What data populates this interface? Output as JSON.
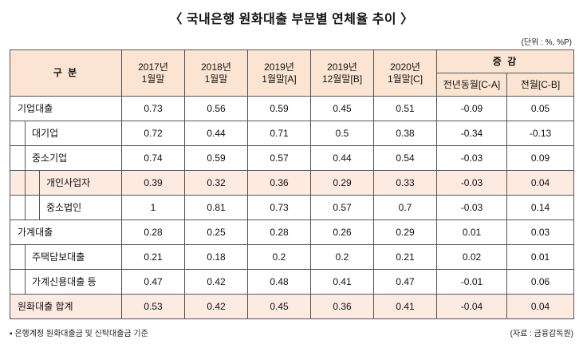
{
  "page": {
    "title": "〈 국내은행 원화대출 부문별 연체율 추이 〉",
    "unit_note": "(단위 : %, %P)",
    "footnote": "▪ 은행계정 원화대출금 및 신탁대출금 기준",
    "source": "(자료 : 금융감독원)"
  },
  "colors": {
    "header_bg": "#fbe5d2",
    "highlight_bg": "#fdeae1",
    "outer_border": "#222222",
    "inner_border": "#555555"
  },
  "chart_data": {
    "type": "table",
    "title": "국내은행 원화대출 부문별 연체율 추이",
    "unit": "%, %P",
    "header": {
      "category_label": "구  분",
      "period_columns": [
        "2017년\n1월말",
        "2018년\n1월말",
        "2019년\n1월말[A]",
        "2019년\n12월말[B]",
        "2020년\n1월말[C]"
      ],
      "change_group_label": "증 감",
      "change_columns": [
        "전년동월[C-A]",
        "전월[C-B]"
      ]
    },
    "rows": [
      {
        "label": "기업대출",
        "indent": 0,
        "highlight": false,
        "values": [
          "0.73",
          "0.56",
          "0.59",
          "0.45",
          "0.51",
          "-0.09",
          "0.05"
        ]
      },
      {
        "label": "대기업",
        "indent": 1,
        "highlight": false,
        "values": [
          "0.72",
          "0.44",
          "0.71",
          "0.5",
          "0.38",
          "-0.34",
          "-0.13"
        ]
      },
      {
        "label": "중소기업",
        "indent": 1,
        "highlight": false,
        "values": [
          "0.74",
          "0.59",
          "0.57",
          "0.44",
          "0.54",
          "-0.03",
          "0.09"
        ]
      },
      {
        "label": "개인사업자",
        "indent": 2,
        "highlight": true,
        "values": [
          "0.39",
          "0.32",
          "0.36",
          "0.29",
          "0.33",
          "-0.03",
          "0.04"
        ]
      },
      {
        "label": "중소법인",
        "indent": 2,
        "highlight": false,
        "values": [
          "1",
          "0.81",
          "0.73",
          "0.57",
          "0.7",
          "-0.03",
          "0.14"
        ]
      },
      {
        "label": "가계대출",
        "indent": 0,
        "highlight": false,
        "values": [
          "0.28",
          "0.25",
          "0.28",
          "0.26",
          "0.29",
          "0.01",
          "0.03"
        ]
      },
      {
        "label": "주택담보대출",
        "indent": 1,
        "highlight": false,
        "values": [
          "0.21",
          "0.18",
          "0.2",
          "0.2",
          "0.21",
          "0.02",
          "0.01"
        ]
      },
      {
        "label": "가계신용대출 등",
        "indent": 1,
        "highlight": false,
        "values": [
          "0.47",
          "0.42",
          "0.48",
          "0.41",
          "0.47",
          "-0.01",
          "0.06"
        ]
      },
      {
        "label": "원화대출 합계",
        "indent": 0,
        "highlight": true,
        "values": [
          "0.53",
          "0.42",
          "0.45",
          "0.36",
          "0.41",
          "-0.04",
          "0.04"
        ]
      }
    ]
  }
}
